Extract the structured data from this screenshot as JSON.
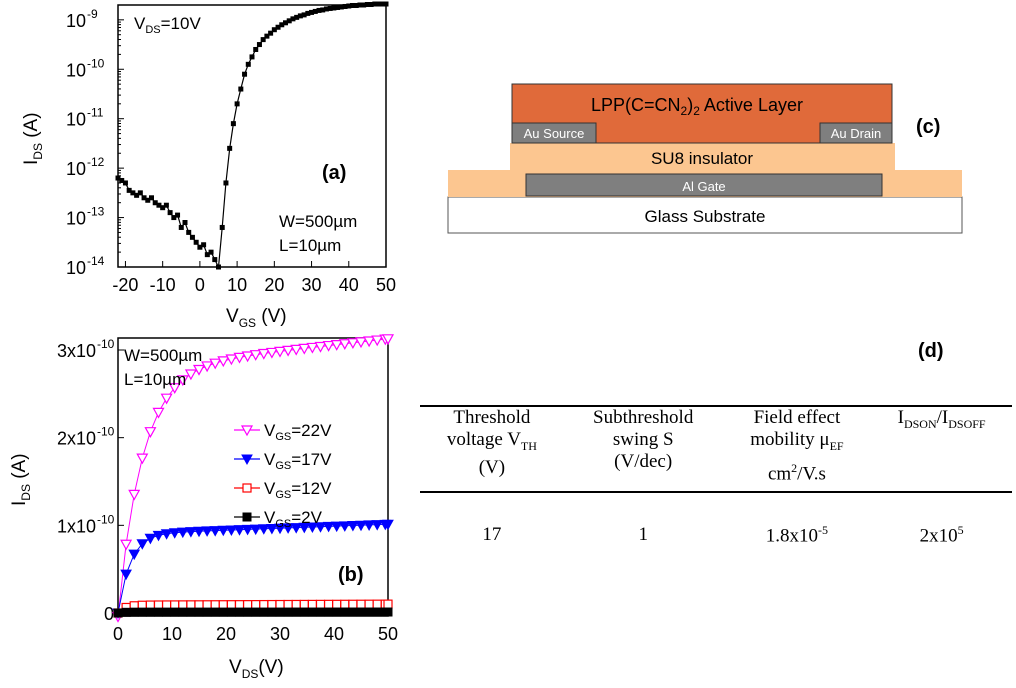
{
  "chart_data": [
    {
      "panel": "(a)",
      "type": "line",
      "yscale": "log",
      "xlabel_main": "V",
      "xlabel_sub": "GS",
      "xlabel_unit": " (V)",
      "ylabel_main": "I",
      "ylabel_sub": "DS",
      "ylabel_unit": " (A)",
      "xlim": [
        -22,
        50
      ],
      "ylim_exp": [
        -14,
        -8.7
      ],
      "x_ticks": [
        "-20",
        "-10",
        "0",
        "10",
        "20",
        "30",
        "40",
        "50"
      ],
      "x_tick_values": [
        -20,
        -10,
        0,
        10,
        20,
        30,
        40,
        50
      ],
      "y_ticks_exp": [
        -14,
        -13,
        -12,
        -11,
        -10,
        -9
      ],
      "y_tick_base": "10",
      "y_tick_exps": [
        "-14",
        "-13",
        "-12",
        "-11",
        "-10",
        "-9"
      ],
      "annotations": {
        "vds_main": "V",
        "vds_sub": "DS",
        "vds_val": "=10V",
        "panel_label": "(a)",
        "w": "W=500µm",
        "l": "L=10µm"
      },
      "series": [
        {
          "x": [
            -22,
            -21,
            -20,
            -19,
            -18,
            -17,
            -16,
            -15,
            -14,
            -13,
            -12,
            -11,
            -10,
            -9,
            -8,
            -7,
            -6,
            -5,
            -4,
            -3,
            -2,
            -1,
            0,
            1,
            2,
            3,
            4,
            5,
            6,
            7,
            8,
            9,
            10,
            11,
            12,
            13,
            14,
            15,
            16,
            17,
            18,
            19,
            20,
            21,
            22,
            23,
            24,
            25,
            26,
            27,
            28,
            29,
            30,
            31,
            32,
            33,
            34,
            35,
            36,
            37,
            38,
            39,
            40,
            41,
            42,
            43,
            44,
            45,
            46,
            47,
            48,
            49,
            50
          ],
          "y_log10": [
            -12.2,
            -12.25,
            -12.3,
            -12.45,
            -12.5,
            -12.55,
            -12.5,
            -12.6,
            -12.65,
            -12.6,
            -12.7,
            -12.75,
            -12.8,
            -12.75,
            -12.9,
            -13.0,
            -12.95,
            -13.2,
            -13.1,
            -13.3,
            -13.4,
            -13.5,
            -13.6,
            -13.55,
            -13.75,
            -13.7,
            -13.85,
            -14.0,
            -13.2,
            -12.3,
            -11.6,
            -11.1,
            -10.7,
            -10.4,
            -10.1,
            -9.9,
            -9.75,
            -9.6,
            -9.5,
            -9.4,
            -9.33,
            -9.27,
            -9.2,
            -9.15,
            -9.1,
            -9.06,
            -9.02,
            -8.98,
            -8.95,
            -8.92,
            -8.9,
            -8.87,
            -8.85,
            -8.83,
            -8.81,
            -8.8,
            -8.78,
            -8.77,
            -8.76,
            -8.75,
            -8.74,
            -8.73,
            -8.72,
            -8.71,
            -8.71,
            -8.7,
            -8.7,
            -8.69,
            -8.69,
            -8.68,
            -8.68,
            -8.68,
            -8.68
          ]
        }
      ]
    },
    {
      "panel": "(b)",
      "type": "line",
      "xlabel_main": "V",
      "xlabel_sub": "DS",
      "xlabel_unit": "(V)",
      "ylabel_main": "I",
      "ylabel_sub": "DS",
      "ylabel_unit": " (A)",
      "xlim": [
        0,
        50
      ],
      "ylim": [
        0,
        3e-10
      ],
      "x_ticks": [
        "0",
        "10",
        "20",
        "30",
        "40",
        "50"
      ],
      "x_tick_values": [
        0,
        10,
        20,
        30,
        40,
        50
      ],
      "y_ticks": [
        {
          "value": 0,
          "main": "0",
          "exp": ""
        },
        {
          "value": 1e-10,
          "main": "1x10",
          "exp": "-10"
        },
        {
          "value": 2e-10,
          "main": "2x10",
          "exp": "-10"
        },
        {
          "value": 3e-10,
          "main": "3x10",
          "exp": "-10"
        }
      ],
      "annotations": {
        "w": "W=500µm",
        "l": "L=10µm",
        "panel_label": "(b)"
      },
      "series": [
        {
          "name_main": "V",
          "name_sub": "GS",
          "name_val": "=22V",
          "color": "#ff00ff",
          "marker": "triangle-down-open",
          "saturation": 2.78e-10,
          "k": 0.22
        },
        {
          "name_main": "V",
          "name_sub": "GS",
          "name_val": "=17V",
          "color": "#0000ff",
          "marker": "triangle-down-filled",
          "saturation": 9e-11,
          "k": 0.45
        },
        {
          "name_main": "V",
          "name_sub": "GS",
          "name_val": "=12V",
          "color": "#ff0000",
          "marker": "square-open",
          "saturation": 9e-12,
          "k": 0.8
        },
        {
          "name_main": "V",
          "name_sub": "GS",
          "name_val": "=2V",
          "color": "#000000",
          "marker": "square-filled",
          "saturation": 1e-12,
          "k": 1.0
        }
      ]
    }
  ],
  "diagram": {
    "panel_label": "(c)",
    "active_layer_main": "LPP(C=CN",
    "active_layer_sub": "2",
    "active_layer_close": ")",
    "active_layer_sub2": "2",
    "active_layer_tail": "  Active Layer",
    "source": "Au Source",
    "drain": "Au Drain",
    "insulator": "SU8 insulator",
    "gate": "Al Gate",
    "substrate": "Glass Substrate",
    "colors": {
      "active": "#e06a3a",
      "insulator": "#fcc690",
      "electrode": "#7f7f7f",
      "substrate": "#ffffff"
    }
  },
  "table": {
    "panel_label": "(d)",
    "headers": [
      {
        "l1": "Threshold",
        "l2a": "voltage V",
        "l2sub": "TH",
        "l3": "(V)"
      },
      {
        "l1": "Subthreshold",
        "l2": "swing S",
        "l3": "(V/dec)"
      },
      {
        "l1": "Field effect",
        "l2a": "mobility μ",
        "l2sub": "EF",
        "l3a": "cm",
        "l3sup": "2",
        "l3b": "/V.s"
      },
      {
        "h4a": "I",
        "h4sub1": "DSON",
        "h4b": "/I",
        "h4sub2": "DSOFF"
      }
    ],
    "values": [
      {
        "text": "17"
      },
      {
        "text": "1"
      },
      {
        "main": "1.8x10",
        "sup": "-5"
      },
      {
        "main": "2x10",
        "sup": "5"
      }
    ]
  }
}
